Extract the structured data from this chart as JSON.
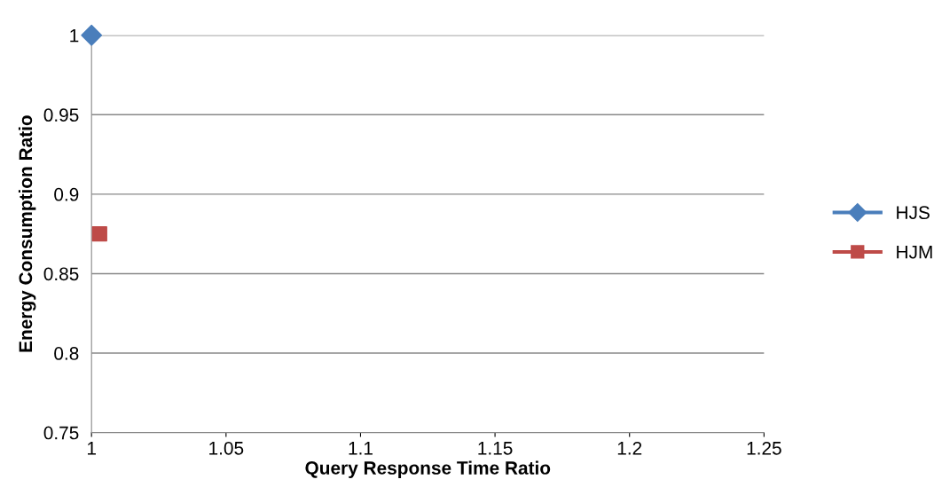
{
  "chart_data": {
    "type": "scatter",
    "xlabel": "Query Response Time Ratio",
    "ylabel": "Energy Consumption Ratio",
    "series": [
      {
        "name": "HJS",
        "color": "#4a7ebb",
        "x": [
          1
        ],
        "values": [
          1
        ],
        "marker": "diamond"
      },
      {
        "name": "HJM",
        "color": "#be4b48",
        "x": [
          1.003
        ],
        "values": [
          0.875
        ],
        "marker": "square"
      }
    ],
    "xlim": [
      1,
      1.25
    ],
    "xticks": [
      1,
      1.05,
      1.1,
      1.15,
      1.2,
      1.25
    ],
    "ylim": [
      0.75,
      1
    ],
    "yticks": [
      0.75,
      0.8,
      0.85,
      0.9,
      0.95,
      1
    ],
    "grid": "y",
    "legend": "right"
  }
}
